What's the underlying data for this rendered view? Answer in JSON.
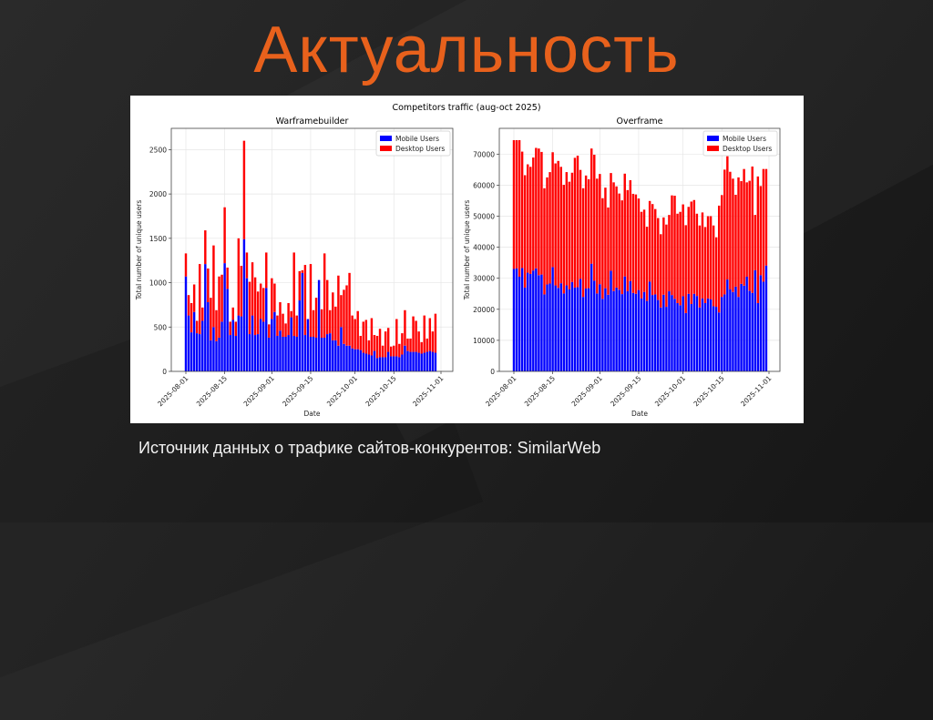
{
  "slide": {
    "title": "Актуальность",
    "source_text": "Источник данных о трафике сайтов-конкурентов: SimilarWeb",
    "title_color": "#e8611c"
  },
  "chart_data": [
    {
      "type": "bar",
      "stacked": true,
      "suptitle": "Competitors traffic (aug-oct 2025)",
      "title": "Warframebuilder",
      "xlabel": "Date",
      "ylabel": "Total number of unique users",
      "x_start": "2025-08-01",
      "x_ticks": [
        "2025-08-01",
        "2025-08-15",
        "2025-09-01",
        "2025-09-15",
        "2025-10-01",
        "2025-10-15",
        "2025-11-01"
      ],
      "x_tick_days": [
        0,
        14,
        31,
        45,
        61,
        75,
        92
      ],
      "y_ticks": [
        0,
        500,
        1000,
        1500,
        2000,
        2500
      ],
      "ylim": [
        0,
        2740
      ],
      "grid": true,
      "legend": "top-right",
      "series": [
        {
          "name": "Mobile Users",
          "color": "#0000ff",
          "values": [
            1070,
            630,
            440,
            670,
            430,
            420,
            570,
            1210,
            780,
            350,
            500,
            340,
            380,
            560,
            1220,
            930,
            410,
            580,
            400,
            630,
            620,
            1490,
            1050,
            420,
            630,
            410,
            420,
            590,
            560,
            940,
            380,
            590,
            670,
            400,
            460,
            390,
            390,
            410,
            610,
            400,
            390,
            800,
            1110,
            410,
            590,
            390,
            390,
            380,
            1030,
            380,
            380,
            420,
            430,
            350,
            350,
            290,
            500,
            310,
            290,
            290,
            260,
            250,
            250,
            240,
            210,
            200,
            190,
            180,
            230,
            150,
            160,
            160,
            160,
            220,
            170,
            170,
            170,
            160,
            190,
            290,
            230,
            220,
            220,
            220,
            210,
            200,
            210,
            220,
            230,
            220,
            210
          ]
        },
        {
          "name": "Desktop Users",
          "color": "#ff0000",
          "values": [
            260,
            230,
            330,
            310,
            140,
            790,
            150,
            380,
            380,
            480,
            920,
            350,
            690,
            530,
            630,
            240,
            150,
            140,
            160,
            870,
            570,
            1110,
            290,
            590,
            600,
            650,
            480,
            400,
            380,
            400,
            150,
            460,
            320,
            230,
            320,
            260,
            150,
            360,
            70,
            940,
            240,
            330,
            30,
            790,
            0,
            820,
            300,
            450,
            0,
            320,
            950,
            610,
            260,
            540,
            380,
            790,
            360,
            610,
            680,
            820,
            370,
            340,
            430,
            160,
            350,
            380,
            160,
            420,
            180,
            250,
            320,
            130,
            290,
            270,
            110,
            120,
            420,
            150,
            240,
            400,
            140,
            150,
            400,
            350,
            240,
            130,
            420,
            150,
            370,
            230,
            440,
            330
          ]
        }
      ]
    },
    {
      "type": "bar",
      "stacked": true,
      "title": "Overframe",
      "xlabel": "Date",
      "ylabel": "Total number of unique users",
      "x_start": "2025-08-01",
      "x_ticks": [
        "2025-08-01",
        "2025-08-15",
        "2025-09-01",
        "2025-09-15",
        "2025-10-01",
        "2025-10-15",
        "2025-11-01"
      ],
      "x_tick_days": [
        0,
        14,
        31,
        45,
        61,
        75,
        92
      ],
      "y_ticks": [
        0,
        10000,
        20000,
        30000,
        40000,
        50000,
        60000,
        70000
      ],
      "ylim": [
        0,
        78300
      ],
      "grid": true,
      "legend": "top-right",
      "series": [
        {
          "name": "Mobile Users",
          "color": "#0000ff",
          "values": [
            33000,
            33200,
            30500,
            33300,
            27000,
            31800,
            31400,
            32500,
            33200,
            31000,
            31200,
            24800,
            28000,
            28300,
            33600,
            27700,
            26900,
            28400,
            25100,
            27700,
            26400,
            28800,
            27000,
            27100,
            29800,
            24000,
            26700,
            26800,
            34700,
            29200,
            25100,
            28100,
            23400,
            26800,
            24700,
            32400,
            25900,
            27000,
            26300,
            24900,
            30600,
            25800,
            29100,
            25300,
            25000,
            26200,
            23500,
            25600,
            22700,
            28900,
            24600,
            24800,
            23000,
            20600,
            24700,
            20800,
            25800,
            24600,
            23400,
            22000,
            21300,
            24200,
            18800,
            25000,
            21700,
            25000,
            24300,
            20600,
            23500,
            22000,
            23500,
            23200,
            21000,
            20800,
            19000,
            24000,
            24800,
            29600,
            26400,
            25600,
            27300,
            24000,
            28200,
            27600,
            30500,
            26000,
            25300,
            32600,
            22000,
            31000,
            28900,
            34100
          ]
        },
        {
          "name": "Desktop Users",
          "color": "#ff0000",
          "values": [
            41500,
            41300,
            44000,
            37500,
            36200,
            34900,
            34500,
            36400,
            38800,
            40800,
            39500,
            34200,
            34500,
            35900,
            37000,
            39300,
            40900,
            37500,
            35000,
            36500,
            34700,
            35200,
            41800,
            42400,
            35100,
            35000,
            36400,
            35100,
            37100,
            40600,
            37000,
            35500,
            32400,
            32400,
            28100,
            31500,
            35000,
            32600,
            31000,
            30200,
            33100,
            32600,
            32500,
            31900,
            32000,
            29500,
            27900,
            26500,
            23900,
            26000,
            29300,
            27500,
            26400,
            23600,
            24900,
            26500,
            24600,
            32100,
            33200,
            28800,
            30100,
            29600,
            28300,
            28000,
            33000,
            30200,
            26500,
            26400,
            27700,
            24500,
            26500,
            26800,
            26000,
            22400,
            34400,
            32800,
            40200,
            39700,
            37900,
            36500,
            29600,
            38500,
            33100,
            37600,
            30400,
            35400,
            40700,
            17800,
            40800,
            28700,
            36300,
            31100
          ]
        }
      ]
    }
  ]
}
